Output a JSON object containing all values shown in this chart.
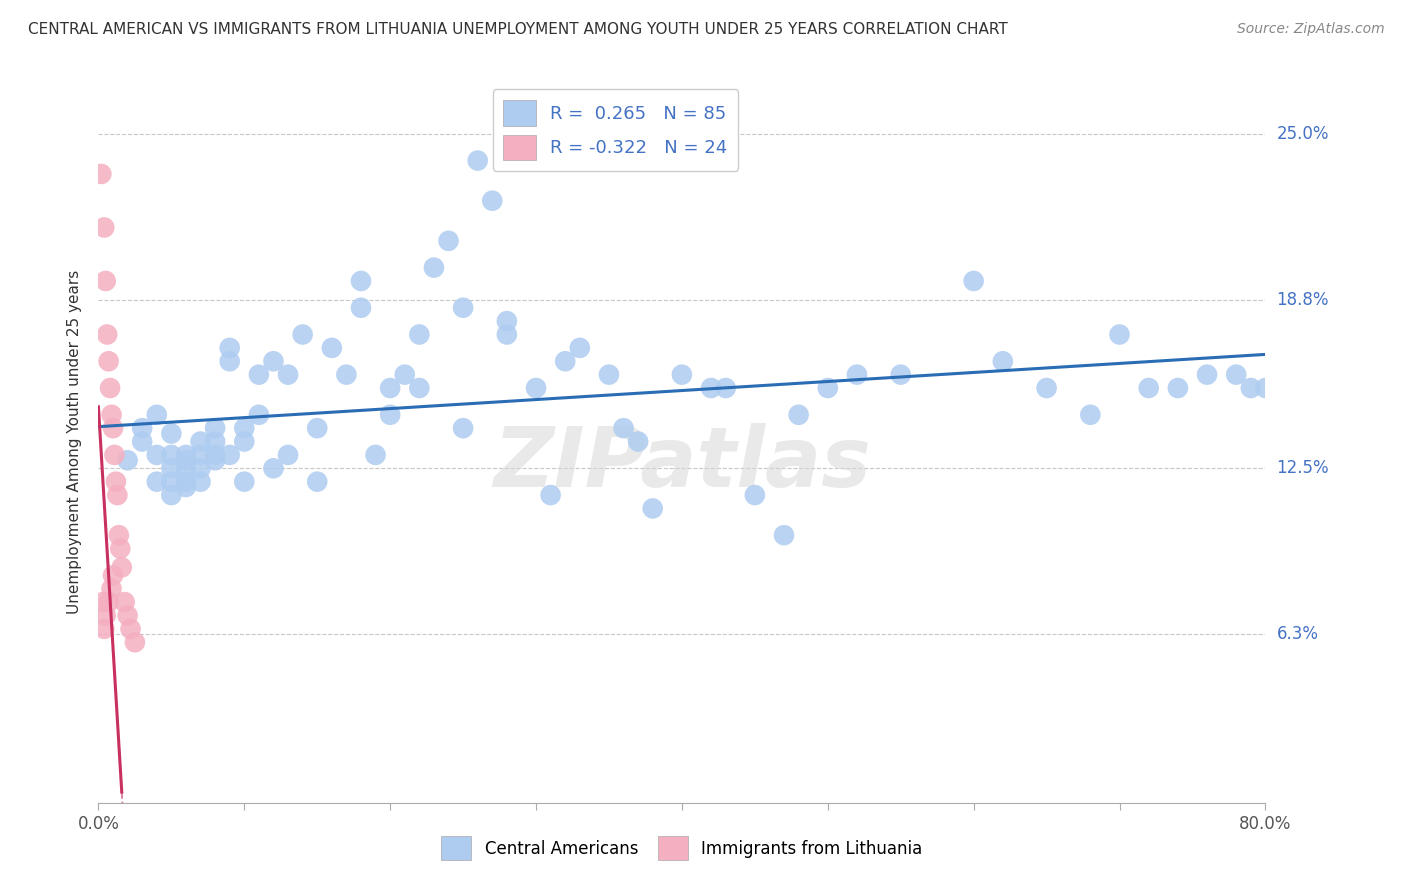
{
  "title": "CENTRAL AMERICAN VS IMMIGRANTS FROM LITHUANIA UNEMPLOYMENT AMONG YOUTH UNDER 25 YEARS CORRELATION CHART",
  "source": "Source: ZipAtlas.com",
  "ylabel": "Unemployment Among Youth under 25 years",
  "xlim": [
    0.0,
    0.8
  ],
  "ylim": [
    0.0,
    0.27
  ],
  "ytick_positions": [
    0.063,
    0.125,
    0.188,
    0.25
  ],
  "ytick_labels": [
    "6.3%",
    "12.5%",
    "18.8%",
    "25.0%"
  ],
  "xtick_positions": [
    0.0,
    0.1,
    0.2,
    0.3,
    0.4,
    0.5,
    0.6,
    0.7,
    0.8
  ],
  "xtick_labels_show": [
    "0.0%",
    "",
    "",
    "",
    "",
    "",
    "",
    "",
    "80.0%"
  ],
  "blue_color": "#aeccf0",
  "pink_color": "#f4afc0",
  "blue_line_color": "#2a6db5",
  "pink_line_color": "#c83060",
  "blue_R": 0.265,
  "blue_N": 85,
  "pink_R": -0.322,
  "pink_N": 24,
  "legend_label_blue": "Central Americans",
  "legend_label_pink": "Immigrants from Lithuania",
  "background_color": "#ffffff",
  "grid_color": "#c8c8c8",
  "watermark": "ZIPatlas",
  "blue_scatter_x": [
    0.02,
    0.03,
    0.03,
    0.04,
    0.04,
    0.04,
    0.05,
    0.05,
    0.05,
    0.05,
    0.05,
    0.06,
    0.06,
    0.06,
    0.06,
    0.06,
    0.07,
    0.07,
    0.07,
    0.07,
    0.08,
    0.08,
    0.08,
    0.08,
    0.09,
    0.09,
    0.09,
    0.1,
    0.1,
    0.1,
    0.11,
    0.11,
    0.12,
    0.12,
    0.13,
    0.13,
    0.14,
    0.15,
    0.15,
    0.16,
    0.17,
    0.18,
    0.18,
    0.19,
    0.2,
    0.2,
    0.21,
    0.22,
    0.22,
    0.23,
    0.24,
    0.25,
    0.25,
    0.26,
    0.27,
    0.28,
    0.28,
    0.3,
    0.31,
    0.32,
    0.33,
    0.35,
    0.36,
    0.37,
    0.38,
    0.4,
    0.42,
    0.43,
    0.45,
    0.47,
    0.48,
    0.5,
    0.52,
    0.55,
    0.6,
    0.62,
    0.65,
    0.68,
    0.7,
    0.72,
    0.74,
    0.76,
    0.78,
    0.79,
    0.8
  ],
  "blue_scatter_y": [
    0.128,
    0.135,
    0.14,
    0.13,
    0.145,
    0.12,
    0.125,
    0.13,
    0.138,
    0.12,
    0.115,
    0.125,
    0.13,
    0.128,
    0.118,
    0.12,
    0.13,
    0.125,
    0.12,
    0.135,
    0.14,
    0.13,
    0.135,
    0.128,
    0.17,
    0.165,
    0.13,
    0.12,
    0.135,
    0.14,
    0.145,
    0.16,
    0.125,
    0.165,
    0.13,
    0.16,
    0.175,
    0.12,
    0.14,
    0.17,
    0.16,
    0.195,
    0.185,
    0.13,
    0.155,
    0.145,
    0.16,
    0.175,
    0.155,
    0.2,
    0.21,
    0.185,
    0.14,
    0.24,
    0.225,
    0.18,
    0.175,
    0.155,
    0.115,
    0.165,
    0.17,
    0.16,
    0.14,
    0.135,
    0.11,
    0.16,
    0.155,
    0.155,
    0.115,
    0.1,
    0.145,
    0.155,
    0.16,
    0.16,
    0.195,
    0.165,
    0.155,
    0.145,
    0.175,
    0.155,
    0.155,
    0.16,
    0.16,
    0.155,
    0.155
  ],
  "pink_scatter_x": [
    0.002,
    0.003,
    0.004,
    0.004,
    0.005,
    0.005,
    0.006,
    0.007,
    0.007,
    0.008,
    0.009,
    0.009,
    0.01,
    0.01,
    0.011,
    0.012,
    0.013,
    0.014,
    0.015,
    0.016,
    0.018,
    0.02,
    0.022,
    0.025
  ],
  "pink_scatter_y": [
    0.235,
    0.075,
    0.215,
    0.065,
    0.195,
    0.07,
    0.175,
    0.165,
    0.075,
    0.155,
    0.145,
    0.08,
    0.14,
    0.085,
    0.13,
    0.12,
    0.115,
    0.1,
    0.095,
    0.088,
    0.075,
    0.07,
    0.065,
    0.06
  ]
}
